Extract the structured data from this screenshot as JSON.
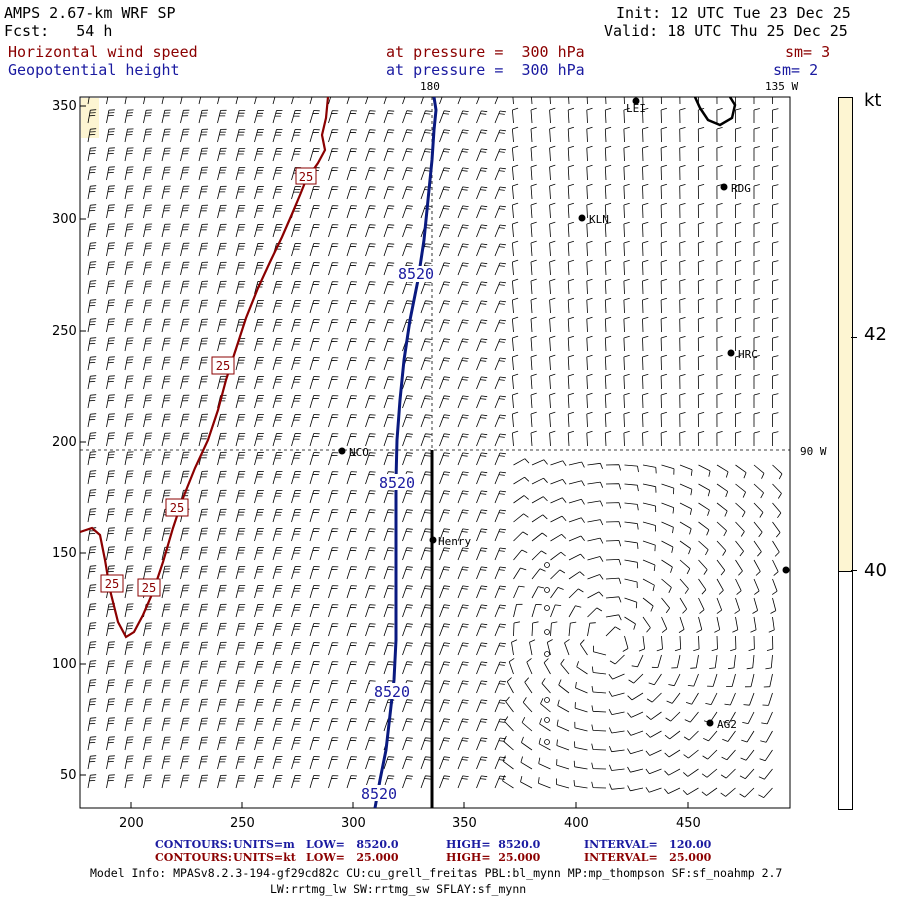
{
  "header": {
    "model": "AMPS 2.67-km WRF SP",
    "fcst": "Fcst:   54 h",
    "init": "Init: 12 UTC Tue 23 Dec 25",
    "valid": "Valid: 18 UTC Thu 25 Dec 25",
    "field1": "Horizontal wind speed",
    "field2": "Geopotential height",
    "level1": "at pressure =  300 hPa",
    "level2": "at pressure =  300 hPa",
    "sm1": "sm= 3",
    "sm2": "sm= 2"
  },
  "map": {
    "lon_label_top": "180",
    "lon_label_corner": "135 W",
    "lon_label_right": "90 W",
    "x_ticks": [
      "200",
      "250",
      "300",
      "350",
      "400",
      "450"
    ],
    "y_ticks": [
      "350",
      "300",
      "250",
      "200",
      "150",
      "100",
      "50"
    ],
    "stations": [
      {
        "id": "LEI",
        "label": "LEI"
      },
      {
        "id": "RDG",
        "label": "RDG"
      },
      {
        "id": "KLN",
        "label": "KLN"
      },
      {
        "id": "HRC",
        "label": "HRC"
      },
      {
        "id": "NCO",
        "label": "NCO"
      },
      {
        "id": "Henry",
        "label": "Henry"
      },
      {
        "id": "AG2",
        "label": "AG2"
      }
    ],
    "height_contour_label": "8520",
    "wind_contour_label": "25"
  },
  "colorbar": {
    "unit": "kt",
    "labels": [
      "42",
      "40"
    ]
  },
  "footer": {
    "line1": {
      "contours": "CONTOURS:",
      "units": "UNITS=m",
      "low": "LOW=   8520.0",
      "high": "HIGH=  8520.0",
      "interval": "INTERVAL=   120.00"
    },
    "line2": {
      "contours": "CONTOURS:",
      "units": "UNITS=kt",
      "low": "LOW=   25.000",
      "high": "HIGH=  25.000",
      "interval": "INTERVAL=   25.000"
    },
    "model_info": "Model Info: MPASv8.2.3-194-gf29cd82c CU:cu_grell_freitas PBL:bl_mynn MP:mp_thompson SF:sf_noahmp 2.7",
    "model_info2": "LW:rrtmg_lw SW:rrtmg_sw SFLAY:sf_mynn"
  },
  "colors": {
    "height_contour": "#0a1a80",
    "wind_contour": "#8b0000",
    "colorbar_fill": "#fdf5d2"
  }
}
